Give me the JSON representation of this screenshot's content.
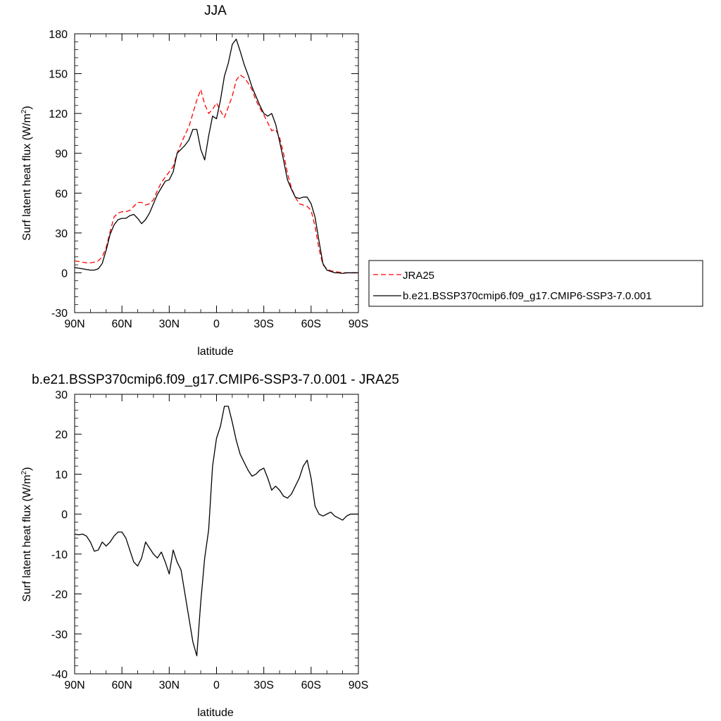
{
  "chart_data": [
    {
      "type": "line",
      "title": "JJA",
      "xlabel": "latitude",
      "ylabel": "Surf latent heat flux (W/m",
      "ylabel_sup": "2",
      "ylabel_close": ")",
      "xlim": [
        -90,
        90
      ],
      "ylim": [
        -30,
        180
      ],
      "x_ticks": [
        -90,
        -60,
        -30,
        0,
        30,
        60,
        90
      ],
      "x_tick_labels": [
        "90N",
        "60N",
        "30N",
        "0",
        "30S",
        "60S",
        "90S"
      ],
      "y_ticks": [
        -30,
        0,
        30,
        60,
        90,
        120,
        150,
        180
      ],
      "y_tick_labels": [
        "-30",
        "0",
        "30",
        "60",
        "90",
        "120",
        "150",
        "180"
      ],
      "grid": false,
      "legend_position": "right",
      "series": [
        {
          "name": "JRA25",
          "color": "#ff0000",
          "dash": "dashed",
          "x": [
            -90,
            -87.5,
            -85,
            -82.5,
            -80,
            -77.5,
            -75,
            -72.5,
            -70,
            -67.5,
            -65,
            -62.5,
            -60,
            -57.5,
            -55,
            -52.5,
            -50,
            -47.5,
            -45,
            -42.5,
            -40,
            -37.5,
            -35,
            -32.5,
            -30,
            -27.5,
            -25,
            -22.5,
            -20,
            -17.5,
            -15,
            -12.5,
            -10,
            -7.5,
            -5,
            -2.5,
            0,
            2.5,
            5,
            7.5,
            10,
            12.5,
            15,
            17.5,
            20,
            22.5,
            25,
            27.5,
            30,
            32.5,
            35,
            37.5,
            40,
            42.5,
            45,
            47.5,
            50,
            52.5,
            55,
            57.5,
            60,
            62.5,
            65,
            67.5,
            70,
            72.5,
            75,
            77.5,
            80,
            82.5,
            85,
            87.5,
            90
          ],
          "values": [
            9,
            8.5,
            8,
            7.5,
            7.5,
            8,
            9,
            12,
            19,
            31,
            42,
            45,
            46,
            46,
            47,
            50,
            53,
            53,
            51,
            52,
            55,
            62,
            68,
            72,
            76,
            80,
            90,
            97,
            104,
            110,
            120,
            130,
            138,
            127,
            120,
            123,
            128,
            122,
            117,
            125,
            133,
            145,
            149,
            147,
            143,
            138,
            130,
            124,
            119,
            113,
            107,
            108,
            102,
            90,
            75,
            64,
            57,
            52,
            51,
            50,
            47,
            35,
            18,
            6,
            3,
            1.5,
            1,
            0.5,
            0,
            0,
            0,
            0,
            0
          ]
        },
        {
          "name": "b.e21.BSSP370cmip6.f09_g17.CMIP6-SSP3-7.0.001",
          "color": "#000000",
          "dash": "solid",
          "x": [
            -90,
            -87.5,
            -85,
            -82.5,
            -80,
            -77.5,
            -75,
            -72.5,
            -70,
            -67.5,
            -65,
            -62.5,
            -60,
            -57.5,
            -55,
            -52.5,
            -50,
            -47.5,
            -45,
            -42.5,
            -40,
            -37.5,
            -35,
            -32.5,
            -30,
            -27.5,
            -25,
            -22.5,
            -20,
            -17.5,
            -15,
            -12.5,
            -10,
            -7.5,
            -5,
            -2.5,
            0,
            2.5,
            5,
            7.5,
            10,
            12.5,
            15,
            17.5,
            20,
            22.5,
            25,
            27.5,
            30,
            32.5,
            35,
            37.5,
            40,
            42.5,
            45,
            47.5,
            50,
            52.5,
            55,
            57.5,
            60,
            62.5,
            65,
            67.5,
            70,
            72.5,
            75,
            77.5,
            80,
            82.5,
            85,
            87.5,
            90
          ],
          "values": [
            4,
            3.5,
            3,
            2.5,
            2,
            2,
            3,
            7,
            17,
            29,
            36,
            40,
            41,
            41,
            43,
            44,
            41,
            37,
            40,
            45,
            52,
            59,
            64,
            69,
            70,
            76,
            90,
            93,
            96,
            100,
            108,
            108,
            93,
            85,
            103,
            118,
            116,
            130,
            148,
            158,
            172,
            176,
            167,
            157,
            149,
            140,
            133,
            126,
            120,
            118,
            120,
            112,
            99,
            85,
            70,
            63,
            57,
            56,
            57,
            57,
            52,
            42,
            24,
            7,
            2,
            1,
            0,
            0,
            -0.5,
            0,
            0,
            0,
            0
          ]
        }
      ]
    },
    {
      "type": "line",
      "title": "b.e21.BSSP370cmip6.f09_g17.CMIP6-SSP3-7.0.001 - JRA25",
      "xlabel": "latitude",
      "ylabel": "Surf latent heat flux (W/m",
      "ylabel_sup": "2",
      "ylabel_close": ")",
      "xlim": [
        -90,
        90
      ],
      "ylim": [
        -40,
        30
      ],
      "x_ticks": [
        -90,
        -60,
        -30,
        0,
        30,
        60,
        90
      ],
      "x_tick_labels": [
        "90N",
        "60N",
        "30N",
        "0",
        "30S",
        "60S",
        "90S"
      ],
      "y_ticks": [
        -40,
        -30,
        -20,
        -10,
        0,
        10,
        20,
        30
      ],
      "y_tick_labels": [
        "-40",
        "-30",
        "-20",
        "-10",
        "0",
        "10",
        "20",
        "30"
      ],
      "grid": false,
      "series": [
        {
          "color": "#000000",
          "dash": "solid",
          "x": [
            -90,
            -87.5,
            -85,
            -82.5,
            -80,
            -77.5,
            -75,
            -72.5,
            -70,
            -67.5,
            -65,
            -62.5,
            -60,
            -57.5,
            -55,
            -52.5,
            -50,
            -47.5,
            -45,
            -42.5,
            -40,
            -37.5,
            -35,
            -32.5,
            -30,
            -27.5,
            -25,
            -22.5,
            -20,
            -17.5,
            -15,
            -12.5,
            -10,
            -7.5,
            -5,
            -2.5,
            0,
            2.5,
            5,
            7.5,
            10,
            12.5,
            15,
            17.5,
            20,
            22.5,
            25,
            27.5,
            30,
            32.5,
            35,
            37.5,
            40,
            42.5,
            45,
            47.5,
            50,
            52.5,
            55,
            57.5,
            60,
            62.5,
            65,
            67.5,
            70,
            72.5,
            75,
            77.5,
            80,
            82.5,
            85,
            87.5,
            90
          ],
          "values": [
            -5,
            -5.2,
            -5,
            -5.5,
            -7,
            -9.3,
            -9,
            -7,
            -8,
            -7,
            -5.5,
            -4.5,
            -4.5,
            -6,
            -9,
            -12,
            -13,
            -11,
            -7,
            -8.5,
            -10,
            -11,
            -9.5,
            -12,
            -15,
            -9,
            -12,
            -14,
            -20,
            -26,
            -32,
            -35.5,
            -22,
            -11,
            -4,
            12,
            19,
            22,
            27,
            27,
            23,
            18.5,
            15,
            13,
            11,
            9.5,
            10,
            11,
            11.5,
            9,
            6,
            7,
            6,
            4.5,
            4,
            5,
            7,
            9,
            12,
            13.5,
            9,
            2,
            0,
            -0.5,
            0,
            0.5,
            -0.5,
            -1,
            -1.5,
            -0.5,
            0,
            0,
            0
          ]
        }
      ]
    }
  ]
}
